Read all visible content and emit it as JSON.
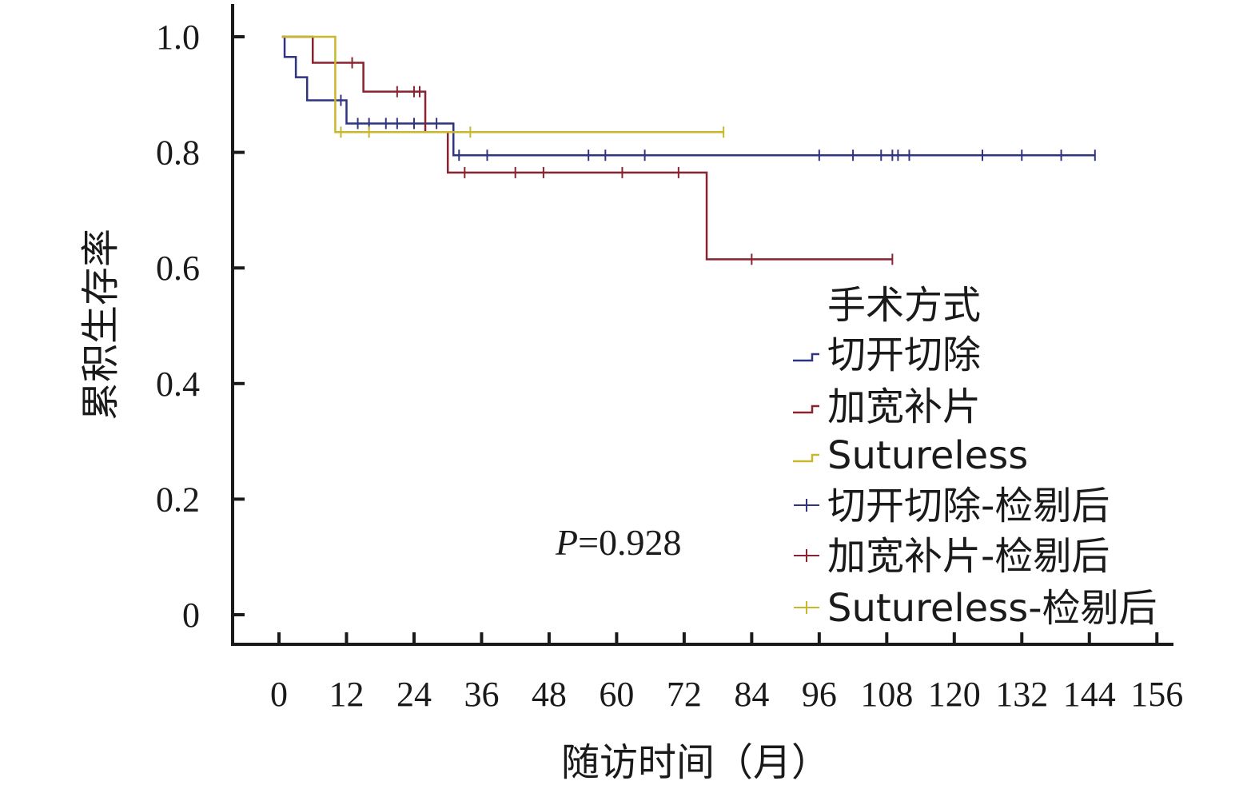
{
  "chart_data": {
    "type": "line",
    "subtype": "kaplan-meier",
    "xlabel": "随访时间（月）",
    "ylabel": "累积生存率",
    "xlim": [
      -8,
      158
    ],
    "ylim": [
      0,
      1.05
    ],
    "xticks": [
      0,
      12,
      24,
      36,
      48,
      60,
      72,
      84,
      96,
      108,
      120,
      132,
      144,
      156
    ],
    "yticks": [
      0,
      0.2,
      0.4,
      0.6,
      0.8,
      1.0
    ],
    "ytick_labels": [
      "0",
      "0.2",
      "0.4",
      "0.6",
      "0.8",
      "1.0"
    ],
    "legend": {
      "title": "手术方式",
      "position": "right",
      "entries": [
        {
          "label": "切开切除",
          "kind": "step",
          "color": "#2e3480"
        },
        {
          "label": "加宽补片",
          "kind": "step",
          "color": "#8b2230"
        },
        {
          "label": "Sutureless",
          "kind": "step",
          "color": "#c9b72c"
        },
        {
          "label": "切开切除-检剔后",
          "kind": "censor",
          "color": "#2e3480"
        },
        {
          "label": "加宽补片-检剔后",
          "kind": "censor",
          "color": "#8b2230"
        },
        {
          "label": "Sutureless-检剔后",
          "kind": "censor",
          "color": "#c9b72c"
        }
      ]
    },
    "annotation": {
      "p_italic": "P",
      "p_rest": "=0.928"
    },
    "series": [
      {
        "color": "#2e3480",
        "steps": [
          [
            0.5,
            1.0
          ],
          [
            1,
            0.965
          ],
          [
            3,
            0.93
          ],
          [
            5,
            0.89
          ],
          [
            12,
            0.85
          ],
          [
            31,
            0.795
          ],
          [
            145,
            0.795
          ]
        ],
        "censored": [
          [
            11,
            0.89
          ],
          [
            14,
            0.85
          ],
          [
            16,
            0.85
          ],
          [
            19,
            0.85
          ],
          [
            21,
            0.85
          ],
          [
            24,
            0.85
          ],
          [
            28,
            0.85
          ],
          [
            32,
            0.795
          ],
          [
            37,
            0.795
          ],
          [
            55,
            0.795
          ],
          [
            58,
            0.795
          ],
          [
            65,
            0.795
          ],
          [
            96,
            0.795
          ],
          [
            102,
            0.795
          ],
          [
            107,
            0.795
          ],
          [
            109,
            0.795
          ],
          [
            110,
            0.795
          ],
          [
            112,
            0.795
          ],
          [
            125,
            0.795
          ],
          [
            132,
            0.795
          ],
          [
            139,
            0.795
          ],
          [
            145,
            0.795
          ]
        ]
      },
      {
        "color": "#8b2230",
        "steps": [
          [
            0.5,
            1.0
          ],
          [
            6,
            0.955
          ],
          [
            15,
            0.905
          ],
          [
            26,
            0.835
          ],
          [
            30,
            0.765
          ],
          [
            76,
            0.615
          ],
          [
            109,
            0.615
          ]
        ],
        "censored": [
          [
            13,
            0.955
          ],
          [
            21,
            0.905
          ],
          [
            24,
            0.905
          ],
          [
            25,
            0.905
          ],
          [
            33,
            0.765
          ],
          [
            42,
            0.765
          ],
          [
            47,
            0.765
          ],
          [
            61,
            0.765
          ],
          [
            71,
            0.765
          ],
          [
            84,
            0.615
          ],
          [
            109,
            0.615
          ]
        ]
      },
      {
        "color": "#c9b72c",
        "steps": [
          [
            0.5,
            1.0
          ],
          [
            10,
            0.835
          ],
          [
            79,
            0.835
          ]
        ],
        "censored": [
          [
            11,
            0.835
          ],
          [
            16,
            0.835
          ],
          [
            34,
            0.835
          ],
          [
            79,
            0.835
          ]
        ]
      }
    ]
  }
}
